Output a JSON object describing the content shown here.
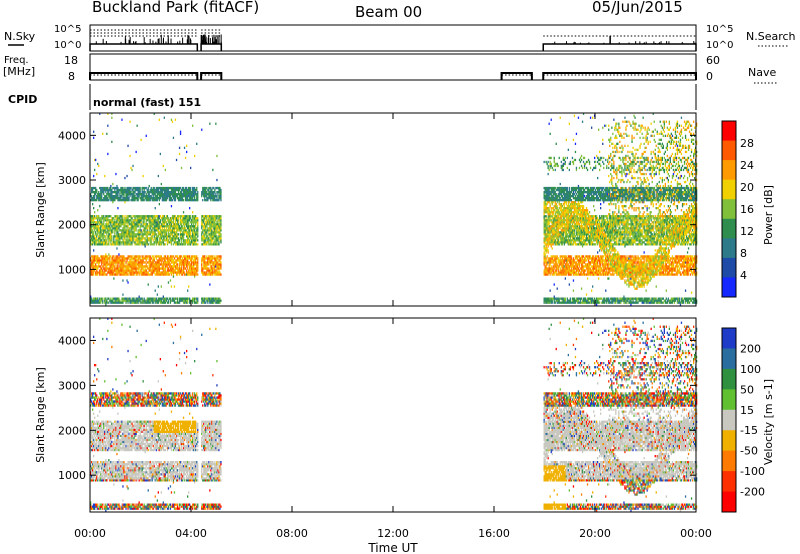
{
  "header": {
    "site": "Buckland Park (fitACF)",
    "beam": "Beam 00",
    "date": "05/Jun/2015"
  },
  "summary_panels": {
    "nsky_label": "N.Sky",
    "freq_label_line1": "Freq.",
    "freq_label_line2": "[MHz]",
    "cpid_label": "CPID",
    "nsearch_label": "N.Search",
    "nave_label": "Nave",
    "nsky_ticks": [
      "10^5",
      "10^0"
    ],
    "nsearch_ticks": [
      "10^5",
      "10^0"
    ],
    "freq_ticks": [
      "18",
      "8"
    ],
    "nave_ticks": [
      "60",
      "0"
    ],
    "cpid_text": "normal (fast) 151"
  },
  "chart_data": [
    {
      "type": "heatmap",
      "title": "",
      "quantity": "Power",
      "xlabel": "",
      "ylabel": "Slant Range [km]",
      "xlim": [
        0,
        24
      ],
      "ylim": [
        180,
        4500
      ],
      "x_tick_values": [
        0,
        4,
        8,
        12,
        16,
        20,
        24
      ],
      "y_tick_values": [
        1000,
        2000,
        3000,
        4000
      ],
      "y_tick_labels": [
        "1000",
        "2000",
        "3000",
        "4000"
      ],
      "colorbar": {
        "label": "Power [dB]",
        "ticks": [
          "4",
          "8",
          "12",
          "16",
          "20",
          "24",
          "28"
        ],
        "levels": [
          0,
          4,
          8,
          12,
          16,
          20,
          24,
          28,
          30
        ],
        "colors": [
          "#1428ff",
          "#1e4aa8",
          "#2c7a8a",
          "#2f8e4e",
          "#7fbf3a",
          "#f0d000",
          "#ff9a00",
          "#ff5a00",
          "#ff0000"
        ]
      },
      "data_windows_ut_hours": [
        [
          0,
          4.25
        ],
        [
          4.4,
          5.2
        ],
        [
          17.95,
          24
        ]
      ],
      "echo_bands_km": [
        {
          "range": [
            850,
            1300
          ],
          "level_db": 26
        },
        {
          "range": [
            1500,
            2200
          ],
          "level_db": 18
        },
        {
          "range": [
            2500,
            2800
          ],
          "level_db": 12
        },
        {
          "range": [
            200,
            330
          ],
          "level_db": 14
        }
      ]
    },
    {
      "type": "heatmap",
      "title": "",
      "quantity": "Velocity",
      "xlabel": "Time UT",
      "ylabel": "Slant Range [km]",
      "xlim": [
        0,
        24
      ],
      "ylim": [
        180,
        4500
      ],
      "x_tick_values": [
        0,
        4,
        8,
        12,
        16,
        20,
        24
      ],
      "x_tick_labels": [
        "00:00",
        "04:00",
        "08:00",
        "12:00",
        "16:00",
        "20:00",
        "00:00"
      ],
      "y_tick_values": [
        1000,
        2000,
        3000,
        4000
      ],
      "y_tick_labels": [
        "1000",
        "2000",
        "3000",
        "4000"
      ],
      "colorbar": {
        "label": "Velocity [m s-1]",
        "ticks": [
          "200",
          "100",
          "50",
          "15",
          "-15",
          "-50",
          "-100",
          "-200"
        ],
        "colors": [
          "#1e3cc8",
          "#2a6ea0",
          "#2f9040",
          "#60c030",
          "#c8c8c0",
          "#f0b000",
          "#ff7a00",
          "#ff3000",
          "#ff0000"
        ]
      },
      "data_windows_ut_hours": [
        [
          0,
          4.25
        ],
        [
          4.4,
          5.2
        ],
        [
          17.95,
          24
        ]
      ],
      "ground_scatter_bands_km": [
        [
          900,
          2500
        ]
      ]
    }
  ]
}
